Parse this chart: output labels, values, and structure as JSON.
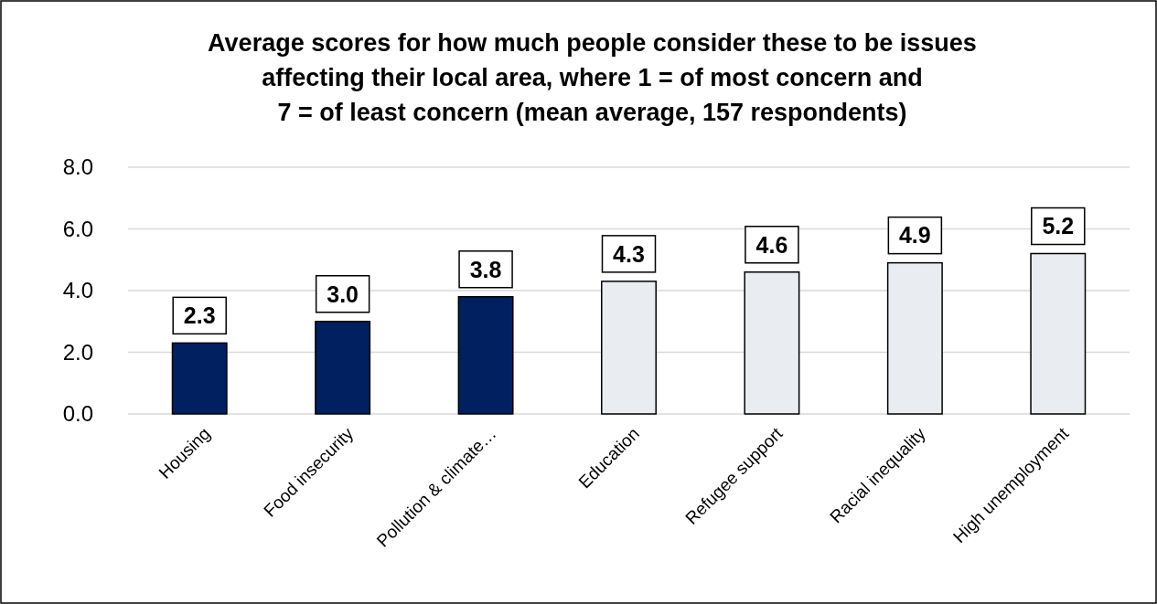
{
  "chart_data": {
    "type": "bar",
    "title": "Average scores for how much people consider these to be issues\naffecting their local area, where 1 = of most concern and\n7 = of least concern (mean average, 157 respondents)",
    "categories": [
      "Housing",
      "Food insecurity",
      "Pollution & climate…",
      "Education",
      "Refugee support",
      "Racial inequality",
      "High unemployment"
    ],
    "values": [
      2.3,
      3.0,
      3.8,
      4.3,
      4.6,
      4.9,
      5.2
    ],
    "colors": [
      "#002060",
      "#002060",
      "#002060",
      "#e9ecf1",
      "#e9ecf1",
      "#e9ecf1",
      "#e9ecf1"
    ],
    "value_labels": [
      "2.3",
      "3.0",
      "3.8",
      "4.3",
      "4.6",
      "4.9",
      "5.2"
    ],
    "ylim": [
      0,
      8
    ],
    "yticks": [
      {
        "value": 0,
        "label": "0.0"
      },
      {
        "value": 2,
        "label": "2.0"
      },
      {
        "value": 4,
        "label": "4.0"
      },
      {
        "value": 6,
        "label": "6.0"
      },
      {
        "value": 8,
        "label": "8.0"
      }
    ],
    "grid": "y"
  }
}
